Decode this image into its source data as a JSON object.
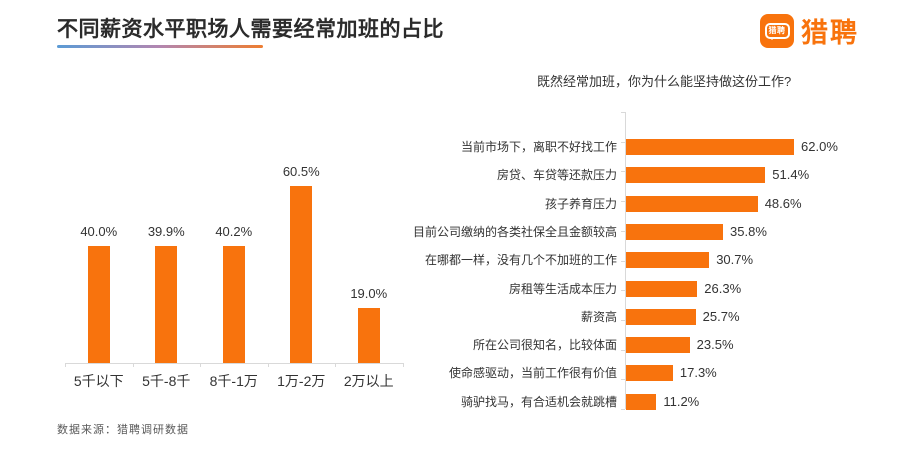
{
  "header": {
    "title": "不同薪资水平职场人需要经常加班的占比"
  },
  "logo": {
    "icon_text": "猎聘",
    "text": "猎聘",
    "brand_color": "#f8730d"
  },
  "footer": {
    "source": "数据来源：猎聘调研数据"
  },
  "chart_data": [
    {
      "type": "bar",
      "title": "不同薪资水平职场人需要经常加班的占比",
      "categories": [
        "5千以下",
        "5千-8千",
        "8千-1万",
        "1万-2万",
        "2万以上"
      ],
      "values": [
        40.0,
        39.9,
        40.2,
        60.5,
        19.0
      ],
      "unit": "%",
      "bar_color": "#f8730d",
      "xlabel": "",
      "ylabel": "",
      "ylim": [
        0,
        70
      ],
      "grid": false,
      "legend": false,
      "value_labels_shown": true
    },
    {
      "type": "bar-horizontal",
      "title": "既然经常加班，你为什么能坚持做这份工作?",
      "categories": [
        "当前市场下，离职不好找工作",
        "房贷、车贷等还款压力",
        "孩子养育压力",
        "目前公司缴纳的各类社保全且金额较高",
        "在哪都一样，没有几个不加班的工作",
        "房租等生活成本压力",
        "薪资高",
        "所在公司很知名，比较体面",
        "使命感驱动，当前工作很有价值",
        "骑驴找马，有合适机会就跳槽"
      ],
      "values": [
        62.0,
        51.4,
        48.6,
        35.8,
        30.7,
        26.3,
        25.7,
        23.5,
        17.3,
        11.2
      ],
      "unit": "%",
      "bar_color": "#f8730d",
      "xlim": [
        0,
        70
      ],
      "grid": false,
      "legend": false,
      "value_labels_shown": true
    }
  ]
}
